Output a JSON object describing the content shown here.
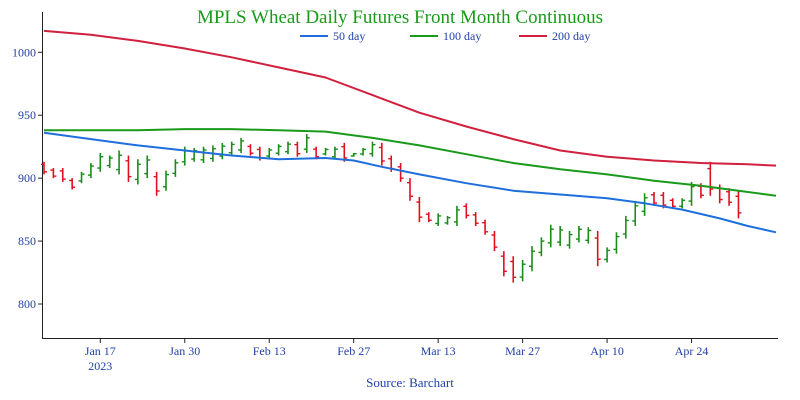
{
  "chart_data": {
    "type": "line",
    "title": "MPLS Wheat Daily Futures Front Month Continuous",
    "source": "Source: Barchart",
    "ylim": [
      773,
      1032
    ],
    "yticks": [
      800,
      850,
      900,
      950,
      1000
    ],
    "xlim": [
      0,
      78
    ],
    "xticks": [
      {
        "x": 6,
        "label": "Jan 17",
        "sub": "2023"
      },
      {
        "x": 15,
        "label": "Jan 30"
      },
      {
        "x": 24,
        "label": "Feb 13"
      },
      {
        "x": 33,
        "label": "Feb 27"
      },
      {
        "x": 42,
        "label": "Mar 13"
      },
      {
        "x": 51,
        "label": "Mar 27"
      },
      {
        "x": 60,
        "label": "Apr 10"
      },
      {
        "x": 69,
        "label": "Apr 24"
      }
    ],
    "legend_position": "top-center",
    "grid": false,
    "series": [
      {
        "name": "50 day",
        "color": "#1e6fdc",
        "points": [
          [
            0,
            936
          ],
          [
            5,
            931
          ],
          [
            10,
            926
          ],
          [
            15,
            922
          ],
          [
            20,
            918
          ],
          [
            25,
            915
          ],
          [
            30,
            916
          ],
          [
            33,
            914
          ],
          [
            36,
            909
          ],
          [
            40,
            903
          ],
          [
            45,
            896
          ],
          [
            50,
            890
          ],
          [
            55,
            887
          ],
          [
            60,
            884
          ],
          [
            64,
            880
          ],
          [
            68,
            875
          ],
          [
            72,
            868
          ],
          [
            75,
            862
          ],
          [
            78,
            857
          ]
        ]
      },
      {
        "name": "100 day",
        "color": "#1a9a1a",
        "points": [
          [
            0,
            938
          ],
          [
            5,
            938
          ],
          [
            10,
            938
          ],
          [
            15,
            939
          ],
          [
            20,
            939
          ],
          [
            25,
            938
          ],
          [
            30,
            937
          ],
          [
            35,
            932
          ],
          [
            40,
            926
          ],
          [
            45,
            919
          ],
          [
            50,
            912
          ],
          [
            55,
            907
          ],
          [
            60,
            903
          ],
          [
            65,
            898
          ],
          [
            70,
            894
          ],
          [
            74,
            890
          ],
          [
            78,
            886
          ]
        ]
      },
      {
        "name": "200 day",
        "color": "#d0203e",
        "points": [
          [
            0,
            1017
          ],
          [
            5,
            1014
          ],
          [
            10,
            1009
          ],
          [
            15,
            1003
          ],
          [
            20,
            996
          ],
          [
            25,
            988
          ],
          [
            30,
            980
          ],
          [
            35,
            966
          ],
          [
            40,
            952
          ],
          [
            45,
            941
          ],
          [
            50,
            931
          ],
          [
            55,
            922
          ],
          [
            60,
            917
          ],
          [
            65,
            914
          ],
          [
            70,
            912
          ],
          [
            75,
            911
          ],
          [
            78,
            910
          ]
        ]
      }
    ],
    "bars": [
      [
        0,
        913,
        903,
        "d"
      ],
      [
        1,
        908,
        900,
        "d"
      ],
      [
        2,
        908,
        897,
        "d"
      ],
      [
        3,
        900,
        891,
        "d"
      ],
      [
        4,
        905,
        896,
        "u"
      ],
      [
        5,
        912,
        900,
        "u"
      ],
      [
        6,
        920,
        905,
        "u"
      ],
      [
        7,
        918,
        908,
        "u"
      ],
      [
        8,
        922,
        903,
        "u"
      ],
      [
        9,
        918,
        897,
        "d"
      ],
      [
        10,
        915,
        895,
        "u"
      ],
      [
        11,
        918,
        900,
        "u"
      ],
      [
        12,
        905,
        886,
        "d"
      ],
      [
        13,
        906,
        890,
        "u"
      ],
      [
        14,
        915,
        901,
        "u"
      ],
      [
        15,
        925,
        910,
        "u"
      ],
      [
        16,
        924,
        913,
        "u"
      ],
      [
        17,
        925,
        912,
        "u"
      ],
      [
        18,
        926,
        913,
        "u"
      ],
      [
        19,
        928,
        915,
        "u"
      ],
      [
        20,
        929,
        918,
        "u"
      ],
      [
        21,
        932,
        920,
        "u"
      ],
      [
        22,
        927,
        918,
        "d"
      ],
      [
        23,
        925,
        914,
        "d"
      ],
      [
        24,
        924,
        916,
        "u"
      ],
      [
        25,
        927,
        918,
        "u"
      ],
      [
        26,
        929,
        919,
        "u"
      ],
      [
        27,
        929,
        917,
        "d"
      ],
      [
        28,
        935,
        920,
        "u"
      ],
      [
        29,
        925,
        915,
        "d"
      ],
      [
        30,
        924,
        918,
        "u"
      ],
      [
        31,
        925,
        915,
        "u"
      ],
      [
        32,
        928,
        913,
        "d"
      ],
      [
        33,
        920,
        917,
        "u"
      ],
      [
        34,
        924,
        918,
        "u"
      ],
      [
        35,
        929,
        917,
        "u"
      ],
      [
        36,
        928,
        910,
        "d"
      ],
      [
        37,
        918,
        905,
        "d"
      ],
      [
        38,
        912,
        897,
        "d"
      ],
      [
        39,
        900,
        882,
        "d"
      ],
      [
        40,
        885,
        865,
        "d"
      ],
      [
        41,
        873,
        865,
        "d"
      ],
      [
        42,
        872,
        862,
        "u"
      ],
      [
        43,
        870,
        863,
        "u"
      ],
      [
        44,
        878,
        862,
        "u"
      ],
      [
        45,
        880,
        868,
        "d"
      ],
      [
        46,
        873,
        862,
        "d"
      ],
      [
        47,
        867,
        855,
        "d"
      ],
      [
        48,
        858,
        842,
        "d"
      ],
      [
        49,
        842,
        822,
        "d"
      ],
      [
        50,
        838,
        817,
        "d"
      ],
      [
        51,
        835,
        818,
        "u"
      ],
      [
        52,
        846,
        826,
        "u"
      ],
      [
        53,
        853,
        838,
        "u"
      ],
      [
        54,
        863,
        845,
        "u"
      ],
      [
        55,
        862,
        846,
        "u"
      ],
      [
        56,
        858,
        844,
        "u"
      ],
      [
        57,
        862,
        849,
        "u"
      ],
      [
        58,
        861,
        848,
        "u"
      ],
      [
        59,
        858,
        830,
        "d"
      ],
      [
        60,
        845,
        833,
        "u"
      ],
      [
        61,
        857,
        840,
        "u"
      ],
      [
        62,
        870,
        852,
        "u"
      ],
      [
        63,
        882,
        862,
        "u"
      ],
      [
        64,
        888,
        870,
        "u"
      ],
      [
        65,
        889,
        878,
        "d"
      ],
      [
        66,
        889,
        876,
        "d"
      ],
      [
        67,
        884,
        876,
        "d"
      ],
      [
        68,
        884,
        876,
        "u"
      ],
      [
        69,
        897,
        878,
        "u"
      ],
      [
        70,
        896,
        884,
        "d"
      ],
      [
        71,
        913,
        886,
        "d"
      ],
      [
        72,
        895,
        880,
        "d"
      ],
      [
        73,
        892,
        878,
        "d"
      ],
      [
        74,
        890,
        868,
        "d"
      ]
    ]
  }
}
